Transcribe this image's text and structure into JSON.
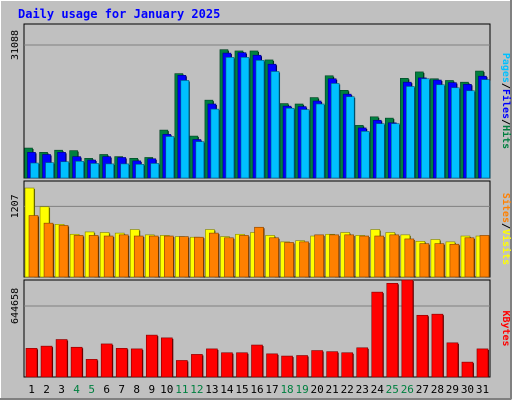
{
  "title": "Daily usage for January 2025",
  "colors": {
    "outer_bg": "#c0c0c0",
    "plot_bg": "#c0c0c0",
    "title": "#0000ff",
    "hits": "#008040",
    "files": "#0000ff",
    "pages": "#00c0ff",
    "visits": "#ffff00",
    "sites": "#ff8000",
    "kbytes": "#ff0000",
    "weekend_label": "#008040",
    "grid": "#808080"
  },
  "chart_data": [
    {
      "type": "bar",
      "panel": "hits-files-pages",
      "ylabel_parts": [
        "Pages",
        "/",
        "Files",
        "/",
        "Hits"
      ],
      "ytick_label": "31088",
      "ylim": [
        0,
        36000
      ],
      "categories": [
        "1",
        "2",
        "3",
        "4",
        "5",
        "6",
        "7",
        "8",
        "9",
        "10",
        "11",
        "12",
        "13",
        "14",
        "15",
        "16",
        "17",
        "18",
        "19",
        "20",
        "21",
        "22",
        "23",
        "24",
        "25",
        "26",
        "27",
        "28",
        "29",
        "30",
        "31"
      ],
      "series": [
        {
          "name": "Hits",
          "values": [
            7000,
            6000,
            6500,
            6400,
            4600,
            5500,
            5000,
            4600,
            4800,
            11200,
            24400,
            9800,
            18200,
            30000,
            29700,
            29700,
            27600,
            17400,
            17300,
            18800,
            23900,
            20500,
            12300,
            14300,
            14000,
            23300,
            24800,
            23200,
            22800,
            22400,
            25000
          ]
        },
        {
          "name": "Files",
          "values": [
            6000,
            5500,
            6000,
            5000,
            4200,
            5000,
            4800,
            4000,
            4500,
            10200,
            24000,
            9000,
            17300,
            29200,
            29300,
            28700,
            26600,
            16800,
            16700,
            18000,
            23200,
            19600,
            11700,
            13500,
            12900,
            22400,
            23400,
            22900,
            22300,
            21900,
            23800
          ]
        },
        {
          "name": "Pages",
          "values": [
            3500,
            3600,
            3800,
            3900,
            3400,
            3300,
            3300,
            3200,
            3400,
            9700,
            22800,
            8500,
            16100,
            28200,
            28200,
            27500,
            24900,
            16300,
            16000,
            17300,
            22100,
            19000,
            10900,
            12700,
            12700,
            21400,
            23200,
            21800,
            21100,
            20400,
            23000
          ]
        }
      ]
    },
    {
      "type": "bar",
      "panel": "visits-sites",
      "ylabel_parts": [
        "Sites",
        "/",
        "Visits"
      ],
      "ytick_label": "1207",
      "ylim": [
        0,
        1640
      ],
      "categories": [
        "1",
        "2",
        "3",
        "4",
        "5",
        "6",
        "7",
        "8",
        "9",
        "10",
        "11",
        "12",
        "13",
        "14",
        "15",
        "16",
        "17",
        "18",
        "19",
        "20",
        "21",
        "22",
        "23",
        "24",
        "25",
        "26",
        "27",
        "28",
        "29",
        "30",
        "31"
      ],
      "series": [
        {
          "name": "Visits",
          "values": [
            1520,
            1200,
            900,
            730,
            770,
            760,
            750,
            810,
            720,
            710,
            690,
            680,
            810,
            690,
            730,
            760,
            710,
            600,
            620,
            700,
            730,
            760,
            710,
            810,
            760,
            720,
            610,
            640,
            600,
            700,
            700
          ]
        },
        {
          "name": "Sites",
          "values": [
            1050,
            920,
            880,
            710,
            710,
            700,
            720,
            700,
            700,
            700,
            690,
            680,
            750,
            670,
            710,
            850,
            670,
            590,
            600,
            720,
            720,
            720,
            700,
            700,
            720,
            650,
            570,
            570,
            560,
            670,
            710
          ]
        }
      ]
    },
    {
      "type": "bar",
      "panel": "kbytes",
      "ylabel_parts": [
        "KBytes"
      ],
      "ytick_label": "644658",
      "ylim": [
        0,
        880000
      ],
      "categories": [
        "1",
        "2",
        "3",
        "4",
        "5",
        "6",
        "7",
        "8",
        "9",
        "10",
        "11",
        "12",
        "13",
        "14",
        "15",
        "16",
        "17",
        "18",
        "19",
        "20",
        "21",
        "22",
        "23",
        "24",
        "25",
        "26",
        "27",
        "28",
        "29",
        "30",
        "31"
      ],
      "series": [
        {
          "name": "KBytes",
          "values": [
            260000,
            280000,
            340000,
            270000,
            160000,
            300000,
            260000,
            255000,
            380000,
            355000,
            150000,
            205000,
            255000,
            220000,
            220000,
            290000,
            210000,
            190000,
            195000,
            240000,
            230000,
            220000,
            265000,
            770000,
            850000,
            880000,
            560000,
            570000,
            310000,
            135000,
            255000
          ]
        }
      ]
    }
  ],
  "x_axis": {
    "labels": [
      "1",
      "2",
      "3",
      "4",
      "5",
      "6",
      "7",
      "8",
      "9",
      "10",
      "11",
      "12",
      "13",
      "14",
      "15",
      "16",
      "17",
      "18",
      "19",
      "20",
      "21",
      "22",
      "23",
      "24",
      "25",
      "26",
      "27",
      "28",
      "29",
      "30",
      "31"
    ],
    "weekend_days": [
      "4",
      "5",
      "11",
      "12",
      "18",
      "19",
      "25",
      "26"
    ]
  }
}
